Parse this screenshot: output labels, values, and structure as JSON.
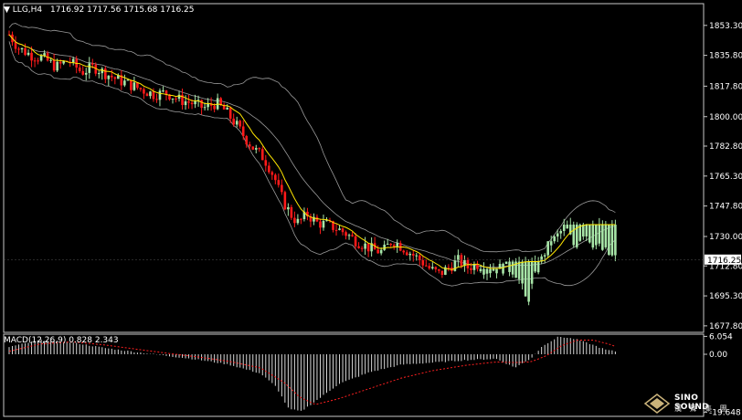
{
  "header": {
    "symbol": "LLG,H4",
    "ohlc": "1716.92 1717.56 1715.68 1716.25",
    "macd_label": "MACD(12,26,9) 0.828 2.343"
  },
  "brand": {
    "name": "SINO SOUND",
    "sub": "漢 聲 集 團"
  },
  "colors": {
    "background": "#000000",
    "frame": "#c8c8c8",
    "bull_candle": "#a8e6a8",
    "bear_candle": "#ff1a1a",
    "ma_line": "#ffe600",
    "bollinger": "#9a9a9a",
    "histogram": "#d8d8d8",
    "signal": "#ff2020"
  },
  "chart_data": [
    {
      "type": "candlestick",
      "series": [
        {
          "name": "Bollinger Bands"
        },
        {
          "name": "Moving Average"
        }
      ],
      "y_ticks": [
        1853.3,
        1835.8,
        1817.8,
        1800.0,
        1782.8,
        1765.3,
        1747.8,
        1730.0,
        1712.8,
        1695.3,
        1677.8
      ],
      "ylim": [
        1674.0,
        1866.0
      ],
      "current_price": "1716.25",
      "close_path": [
        [
          0,
          1848
        ],
        [
          6,
          1840
        ],
        [
          14,
          1836
        ],
        [
          22,
          1834
        ],
        [
          30,
          1829
        ],
        [
          38,
          1833
        ],
        [
          46,
          1826
        ],
        [
          54,
          1829
        ],
        [
          62,
          1825
        ],
        [
          68,
          1822
        ],
        [
          76,
          1819
        ],
        [
          84,
          1816
        ],
        [
          92,
          1813
        ],
        [
          100,
          1814
        ],
        [
          108,
          1810
        ],
        [
          116,
          1808
        ],
        [
          124,
          1805
        ],
        [
          132,
          1808
        ],
        [
          138,
          1803
        ],
        [
          144,
          1796
        ],
        [
          150,
          1788
        ],
        [
          156,
          1781
        ],
        [
          162,
          1776
        ],
        [
          166,
          1770
        ],
        [
          170,
          1762
        ],
        [
          172,
          1756
        ],
        [
          176,
          1748
        ],
        [
          180,
          1742
        ],
        [
          184,
          1738
        ],
        [
          190,
          1743
        ],
        [
          196,
          1738
        ],
        [
          202,
          1737
        ],
        [
          208,
          1735
        ],
        [
          214,
          1732
        ],
        [
          220,
          1728
        ],
        [
          226,
          1725
        ],
        [
          232,
          1722
        ],
        [
          238,
          1721
        ],
        [
          244,
          1728
        ],
        [
          250,
          1724
        ],
        [
          256,
          1720
        ],
        [
          262,
          1716
        ],
        [
          268,
          1711
        ],
        [
          274,
          1708
        ],
        [
          280,
          1712
        ],
        [
          286,
          1716
        ],
        [
          292,
          1712
        ],
        [
          298,
          1714
        ],
        [
          304,
          1710
        ],
        [
          310,
          1711
        ],
        [
          316,
          1712
        ],
        [
          322,
          1710
        ],
        [
          326,
          1702
        ],
        [
          328,
          1695
        ],
        [
          330,
          1692
        ],
        [
          334,
          1704
        ],
        [
          338,
          1714
        ],
        [
          342,
          1723
        ],
        [
          348,
          1729
        ],
        [
          354,
          1736
        ],
        [
          360,
          1724
        ],
        [
          366,
          1733
        ],
        [
          372,
          1726
        ],
        [
          378,
          1722
        ],
        [
          384,
          1718
        ],
        [
          388,
          1716
        ]
      ],
      "bull_count": 96,
      "bear_count": 94
    },
    {
      "type": "bar",
      "title": "MACD(12,26,9)",
      "macd": 0.828,
      "signal": 2.343,
      "y_ticks": [
        6.054,
        0.0,
        -19.648
      ],
      "ylim": [
        -21.0,
        6.8
      ],
      "histogram_path": [
        [
          0,
          2.5
        ],
        [
          20,
          4.8
        ],
        [
          40,
          4.0
        ],
        [
          60,
          2.2
        ],
        [
          80,
          0.8
        ],
        [
          100,
          -0.5
        ],
        [
          120,
          -1.8
        ],
        [
          140,
          -3.5
        ],
        [
          160,
          -6.5
        ],
        [
          170,
          -11
        ],
        [
          178,
          -18.5
        ],
        [
          186,
          -19.3
        ],
        [
          196,
          -15.5
        ],
        [
          210,
          -10
        ],
        [
          230,
          -6
        ],
        [
          250,
          -3.5
        ],
        [
          270,
          -2.8
        ],
        [
          290,
          -2
        ],
        [
          310,
          -1.5
        ],
        [
          322,
          -4.5
        ],
        [
          332,
          -1.5
        ],
        [
          340,
          3
        ],
        [
          350,
          6
        ],
        [
          360,
          5.2
        ],
        [
          370,
          3.5
        ],
        [
          380,
          1.5
        ],
        [
          388,
          0.8
        ]
      ],
      "signal_path": [
        [
          0,
          1
        ],
        [
          20,
          3.5
        ],
        [
          40,
          4.2
        ],
        [
          60,
          3.2
        ],
        [
          80,
          1.8
        ],
        [
          100,
          0.4
        ],
        [
          120,
          -0.9
        ],
        [
          140,
          -2.4
        ],
        [
          160,
          -4.6
        ],
        [
          175,
          -9.5
        ],
        [
          185,
          -14.5
        ],
        [
          195,
          -17
        ],
        [
          210,
          -15
        ],
        [
          230,
          -11.5
        ],
        [
          250,
          -8
        ],
        [
          270,
          -5.5
        ],
        [
          290,
          -3.8
        ],
        [
          310,
          -2.6
        ],
        [
          322,
          -2.8
        ],
        [
          332,
          -2.6
        ],
        [
          342,
          -0.5
        ],
        [
          352,
          3
        ],
        [
          362,
          4.8
        ],
        [
          372,
          4.8
        ],
        [
          382,
          3.4
        ],
        [
          388,
          2.3
        ]
      ]
    }
  ]
}
